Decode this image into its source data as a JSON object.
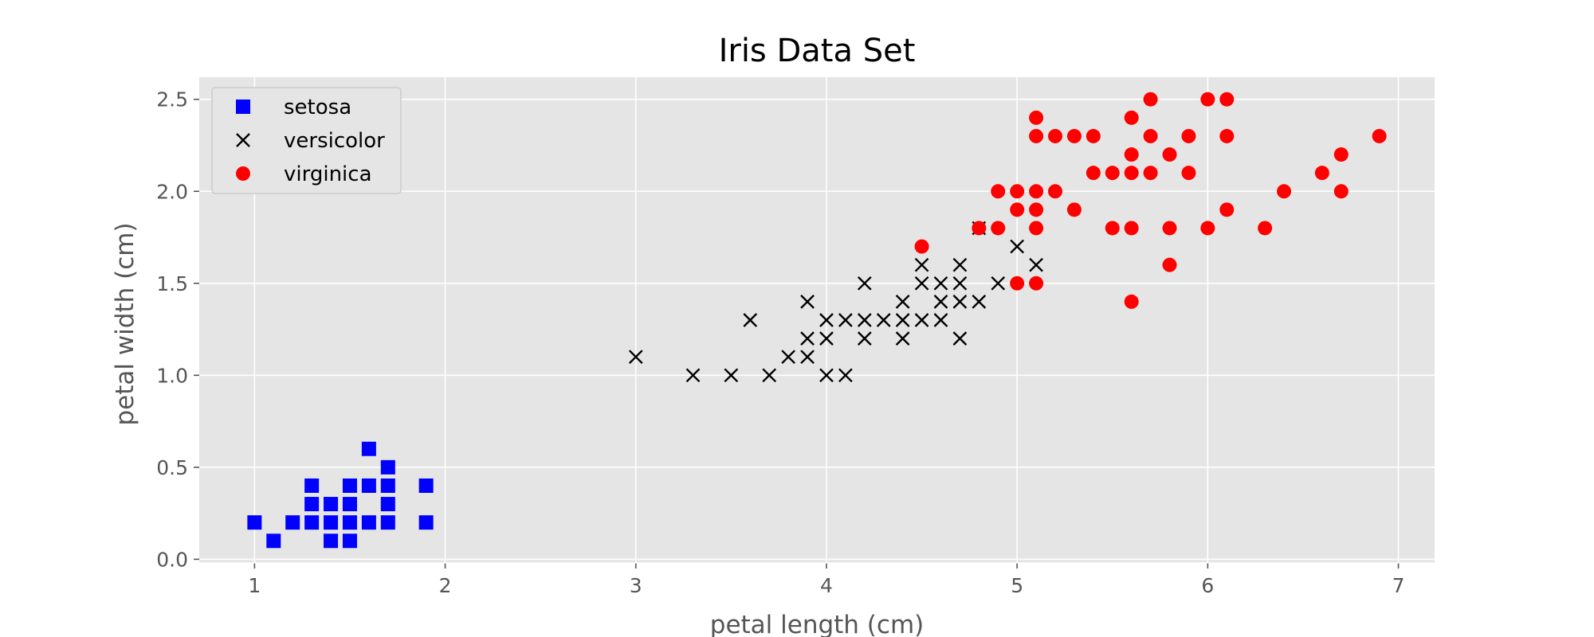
{
  "chart_data": {
    "type": "scatter",
    "title": "Iris Data Set",
    "xlabel": "petal length (cm)",
    "ylabel": "petal width (cm)",
    "xlim": [
      0.71,
      7.19
    ],
    "ylim": [
      -0.02,
      2.62
    ],
    "xticks": [
      1,
      2,
      3,
      4,
      5,
      6,
      7
    ],
    "xtick_labels": [
      "1",
      "2",
      "3",
      "4",
      "5",
      "6",
      "7"
    ],
    "yticks": [
      0.0,
      0.5,
      1.0,
      1.5,
      2.0,
      2.5
    ],
    "ytick_labels": [
      "0.0",
      "0.5",
      "1.0",
      "1.5",
      "2.0",
      "2.5"
    ],
    "grid": true,
    "background": "#e5e5e5",
    "legend_position": "upper-left",
    "series": [
      {
        "name": "setosa",
        "marker": "square",
        "color": "#0000ff",
        "points": [
          [
            1.0,
            0.2
          ],
          [
            1.1,
            0.1
          ],
          [
            1.2,
            0.2
          ],
          [
            1.3,
            0.2
          ],
          [
            1.3,
            0.3
          ],
          [
            1.3,
            0.4
          ],
          [
            1.4,
            0.1
          ],
          [
            1.4,
            0.2
          ],
          [
            1.4,
            0.3
          ],
          [
            1.5,
            0.1
          ],
          [
            1.5,
            0.2
          ],
          [
            1.5,
            0.3
          ],
          [
            1.5,
            0.4
          ],
          [
            1.6,
            0.2
          ],
          [
            1.6,
            0.4
          ],
          [
            1.6,
            0.6
          ],
          [
            1.7,
            0.2
          ],
          [
            1.7,
            0.3
          ],
          [
            1.7,
            0.4
          ],
          [
            1.7,
            0.5
          ],
          [
            1.9,
            0.2
          ],
          [
            1.9,
            0.4
          ]
        ]
      },
      {
        "name": "versicolor",
        "marker": "x",
        "color": "#000000",
        "points": [
          [
            3.0,
            1.1
          ],
          [
            3.3,
            1.0
          ],
          [
            3.5,
            1.0
          ],
          [
            3.6,
            1.3
          ],
          [
            3.7,
            1.0
          ],
          [
            3.8,
            1.1
          ],
          [
            3.9,
            1.1
          ],
          [
            3.9,
            1.2
          ],
          [
            3.9,
            1.4
          ],
          [
            4.0,
            1.0
          ],
          [
            4.0,
            1.2
          ],
          [
            4.0,
            1.3
          ],
          [
            4.1,
            1.0
          ],
          [
            4.1,
            1.3
          ],
          [
            4.2,
            1.2
          ],
          [
            4.2,
            1.3
          ],
          [
            4.2,
            1.5
          ],
          [
            4.3,
            1.3
          ],
          [
            4.4,
            1.2
          ],
          [
            4.4,
            1.3
          ],
          [
            4.4,
            1.4
          ],
          [
            4.5,
            1.3
          ],
          [
            4.5,
            1.5
          ],
          [
            4.5,
            1.6
          ],
          [
            4.6,
            1.3
          ],
          [
            4.6,
            1.4
          ],
          [
            4.6,
            1.5
          ],
          [
            4.7,
            1.2
          ],
          [
            4.7,
            1.4
          ],
          [
            4.7,
            1.5
          ],
          [
            4.7,
            1.6
          ],
          [
            4.8,
            1.4
          ],
          [
            4.8,
            1.8
          ],
          [
            4.9,
            1.5
          ],
          [
            5.0,
            1.7
          ],
          [
            5.1,
            1.6
          ]
        ]
      },
      {
        "name": "virginica",
        "marker": "circle",
        "color": "#ff0000",
        "points": [
          [
            4.5,
            1.7
          ],
          [
            4.8,
            1.8
          ],
          [
            4.9,
            1.8
          ],
          [
            4.9,
            2.0
          ],
          [
            5.0,
            1.5
          ],
          [
            5.0,
            1.9
          ],
          [
            5.0,
            2.0
          ],
          [
            5.1,
            1.5
          ],
          [
            5.1,
            1.8
          ],
          [
            5.1,
            1.9
          ],
          [
            5.1,
            2.0
          ],
          [
            5.1,
            2.3
          ],
          [
            5.1,
            2.4
          ],
          [
            5.2,
            2.0
          ],
          [
            5.2,
            2.3
          ],
          [
            5.3,
            1.9
          ],
          [
            5.3,
            2.3
          ],
          [
            5.4,
            2.1
          ],
          [
            5.4,
            2.3
          ],
          [
            5.5,
            1.8
          ],
          [
            5.5,
            2.1
          ],
          [
            5.6,
            1.4
          ],
          [
            5.6,
            1.8
          ],
          [
            5.6,
            2.1
          ],
          [
            5.6,
            2.2
          ],
          [
            5.6,
            2.4
          ],
          [
            5.7,
            2.1
          ],
          [
            5.7,
            2.3
          ],
          [
            5.7,
            2.5
          ],
          [
            5.8,
            1.6
          ],
          [
            5.8,
            1.8
          ],
          [
            5.8,
            2.2
          ],
          [
            5.9,
            2.1
          ],
          [
            5.9,
            2.3
          ],
          [
            6.0,
            1.8
          ],
          [
            6.0,
            2.5
          ],
          [
            6.1,
            1.9
          ],
          [
            6.1,
            2.3
          ],
          [
            6.1,
            2.5
          ],
          [
            6.3,
            1.8
          ],
          [
            6.4,
            2.0
          ],
          [
            6.6,
            2.1
          ],
          [
            6.7,
            2.0
          ],
          [
            6.7,
            2.2
          ],
          [
            6.9,
            2.3
          ]
        ]
      }
    ]
  }
}
